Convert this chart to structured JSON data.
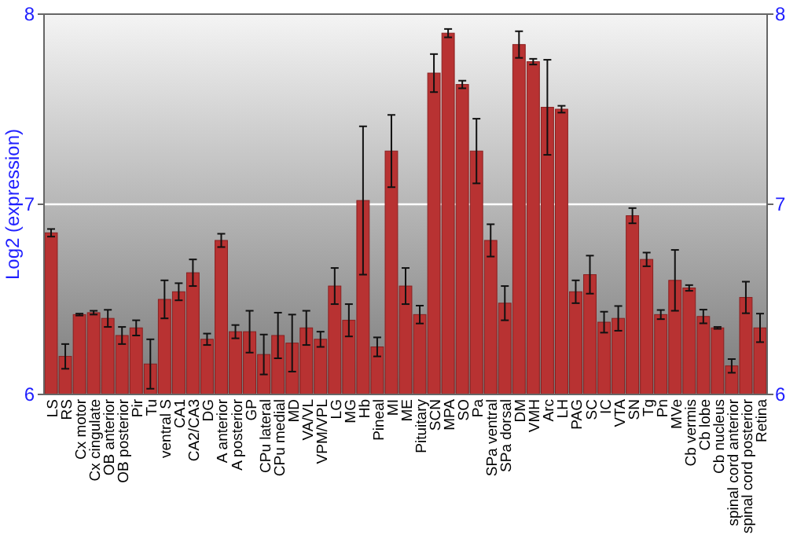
{
  "chart_data": {
    "type": "bar",
    "ylabel": "Log2 (expression)",
    "categories": [
      "LS",
      "RS",
      "Cx motor",
      "Cx cingulate",
      "OB anterior",
      "OB posterior",
      "Pir",
      "Tu",
      "ventral S",
      "CA1",
      "CA2/CA3",
      "DG",
      "A anterior",
      "A posterior",
      "GP",
      "CPu lateral",
      "CPu medial",
      "MD",
      "VA/VL",
      "VPM/VPL",
      "LG",
      "MG",
      "Hb",
      "Pineal",
      "MI",
      "ME",
      "Pituitary",
      "SCN",
      "MPA",
      "SO",
      "Pa",
      "SPa ventral",
      "SPa dorsal",
      "DM",
      "VMH",
      "Arc",
      "LH",
      "PAG",
      "SC",
      "IC",
      "VTA",
      "SN",
      "Tg",
      "Pn",
      "MVe",
      "Cb vermis",
      "Cb lobe",
      "Cb nucleus",
      "spinal cord anterior",
      "spinal cord posterior",
      "Retina"
    ],
    "values": [
      6.85,
      6.2,
      6.42,
      6.43,
      6.4,
      6.31,
      6.35,
      6.16,
      6.5,
      6.54,
      6.64,
      6.29,
      6.81,
      6.33,
      6.33,
      6.21,
      6.31,
      6.27,
      6.35,
      6.29,
      6.57,
      6.39,
      7.02,
      6.25,
      7.28,
      6.57,
      6.42,
      7.69,
      7.9,
      7.63,
      7.28,
      6.81,
      6.48,
      7.84,
      7.75,
      7.51,
      7.5,
      6.54,
      6.63,
      6.38,
      6.4,
      6.94,
      6.71,
      6.42,
      6.6,
      6.56,
      6.41,
      6.35,
      6.15,
      6.51,
      6.35
    ],
    "errors": [
      0.02,
      0.065,
      0.005,
      0.01,
      0.045,
      0.045,
      0.04,
      0.13,
      0.1,
      0.045,
      0.07,
      0.03,
      0.035,
      0.035,
      0.11,
      0.105,
      0.12,
      0.15,
      0.09,
      0.04,
      0.095,
      0.085,
      0.39,
      0.05,
      0.19,
      0.095,
      0.047,
      0.1,
      0.022,
      0.02,
      0.17,
      0.085,
      0.09,
      0.07,
      0.015,
      0.25,
      0.018,
      0.06,
      0.1,
      0.055,
      0.065,
      0.04,
      0.036,
      0.024,
      0.16,
      0.015,
      0.036,
      0.005,
      0.036,
      0.083,
      0.075
    ],
    "color": "#b83232",
    "ylim": [
      6,
      8
    ],
    "yticks": [
      6,
      7,
      8
    ],
    "y2lim": [
      6,
      8
    ],
    "y2ticks": [
      6,
      7,
      8
    ],
    "grid": "y"
  }
}
